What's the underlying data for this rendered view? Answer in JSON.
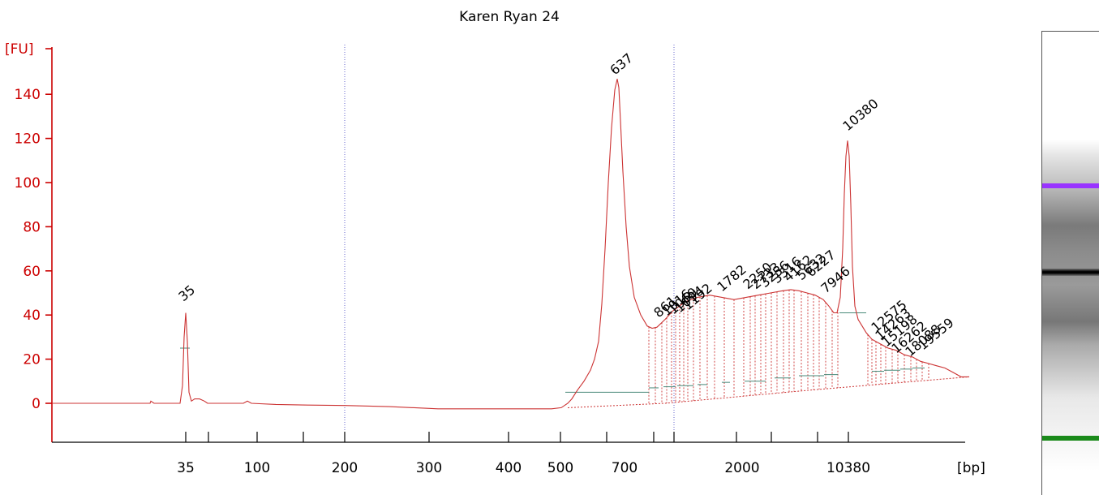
{
  "chart_data": {
    "type": "line",
    "title": "Karen Ryan 24",
    "ylabel": "[FU]",
    "xlabel": "[bp]",
    "ylim": [
      -17,
      160
    ],
    "yticks": [
      0,
      20,
      40,
      60,
      80,
      100,
      120,
      140
    ],
    "xtick_labels": [
      "35",
      "100",
      "200",
      "300",
      "400",
      "500",
      "700",
      "2000",
      "10380"
    ],
    "ladder_markers": [
      {
        "label": "35",
        "color": "#1a8a1a",
        "fu": 41
      },
      {
        "label": "10380",
        "color": "#9933ff",
        "fu": 119
      }
    ],
    "main_peak": {
      "label": "637",
      "fu": 147
    },
    "smear_peak_labels": [
      "861",
      "1016",
      "1069",
      "1094",
      "1192",
      "1782",
      "2250",
      "2733",
      "3256",
      "3316",
      "4162",
      "5632",
      "6227",
      "7946",
      "12575",
      "14263",
      "15198",
      "16262",
      "18088",
      "19559"
    ],
    "trace_color": "#cc3333",
    "baseline_color": "#4a8a7a",
    "marker_colors": {
      "lower": "#1a8a1a",
      "upper": "#9933ff"
    }
  }
}
